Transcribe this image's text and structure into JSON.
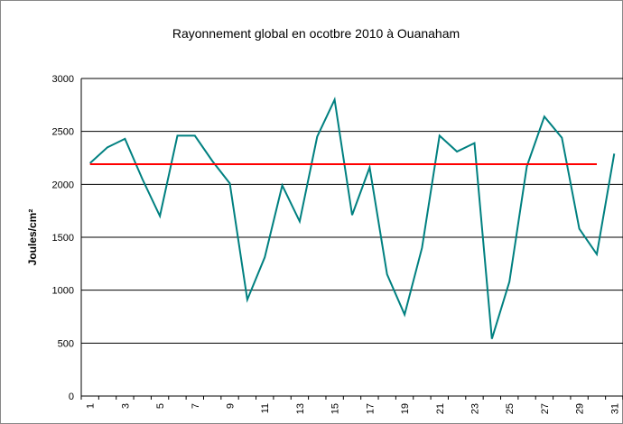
{
  "chart_data": {
    "type": "line",
    "title": "Rayonnement global en ocotbre 2010 à Ouanaham",
    "y_label": "Joules/cm²",
    "categories": [
      "1",
      null,
      "3",
      null,
      "5",
      null,
      "7",
      null,
      "9",
      null,
      "11",
      null,
      "13",
      null,
      "15",
      null,
      "17",
      null,
      "19",
      null,
      "21",
      null,
      "23",
      null,
      "25",
      null,
      "27",
      null,
      "29",
      null,
      "31"
    ],
    "series": [
      {
        "color": "#008080",
        "values": [
          2200,
          2350,
          2430,
          2050,
          1700,
          2460,
          2460,
          2220,
          2010,
          910,
          1310,
          1990,
          1650,
          2450,
          2800,
          1710,
          2160,
          1150,
          770,
          1400,
          2460,
          2310,
          2390,
          540,
          1080,
          2170,
          2640,
          2440,
          1580,
          1340,
          2290
        ]
      },
      {
        "color": "#ff0000",
        "values": [
          2190,
          2190,
          2190,
          2190,
          2190,
          2190,
          2190,
          2190,
          2190,
          2190,
          2190,
          2190,
          2190,
          2190,
          2190,
          2190,
          2190,
          2190,
          2190,
          2190,
          2190,
          2190,
          2190,
          2190,
          2190,
          2190,
          2190,
          2190,
          2190,
          2190,
          null
        ]
      }
    ],
    "ylim": [
      0,
      3000
    ],
    "yticks": [
      0,
      500,
      1000,
      1500,
      2000,
      2500,
      3000
    ],
    "grid": true
  }
}
